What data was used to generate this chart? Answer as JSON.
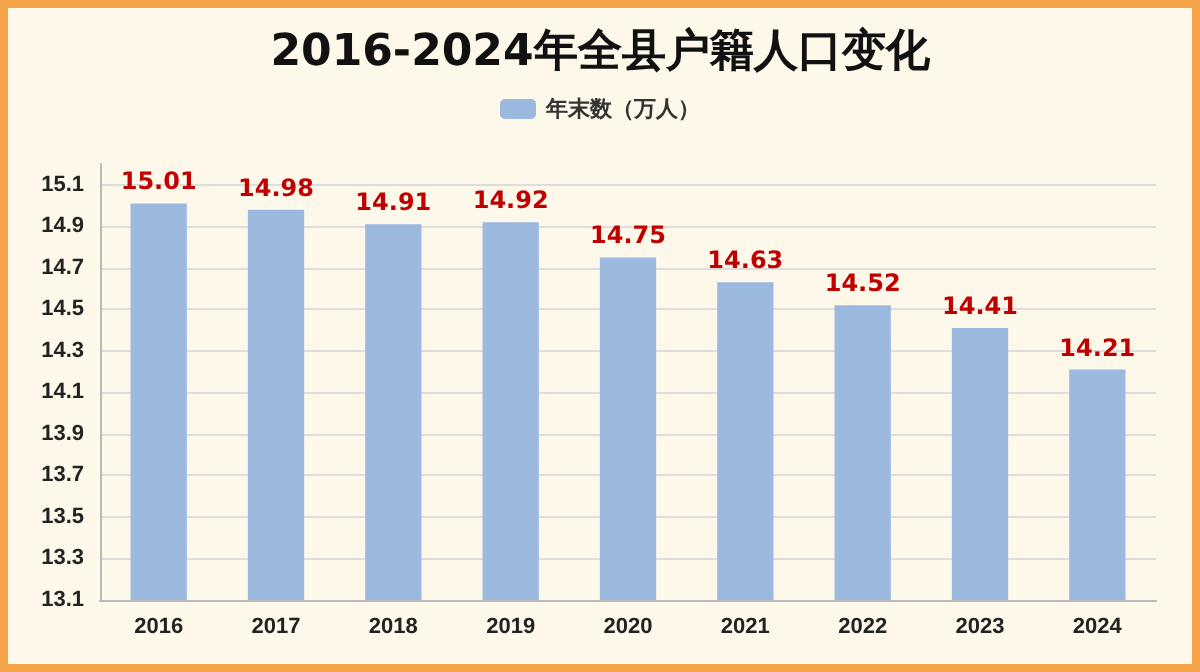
{
  "chart_data": {
    "type": "bar",
    "title": "2016-2024年全县户籍人口变化",
    "categories": [
      "2016",
      "2017",
      "2018",
      "2019",
      "2020",
      "2021",
      "2022",
      "2023",
      "2024"
    ],
    "series": [
      {
        "name": "年末数（万人）",
        "color": "#9bb9de",
        "values": [
          15.01,
          14.98,
          14.91,
          14.92,
          14.75,
          14.63,
          14.52,
          14.41,
          14.21
        ]
      }
    ],
    "ylim": [
      13.1,
      15.2
    ],
    "yticks": [
      13.1,
      13.3,
      13.5,
      13.7,
      13.9,
      14.1,
      14.3,
      14.5,
      14.7,
      14.9,
      15.1
    ],
    "grid": "y",
    "legend": "top",
    "data_labels": true
  }
}
